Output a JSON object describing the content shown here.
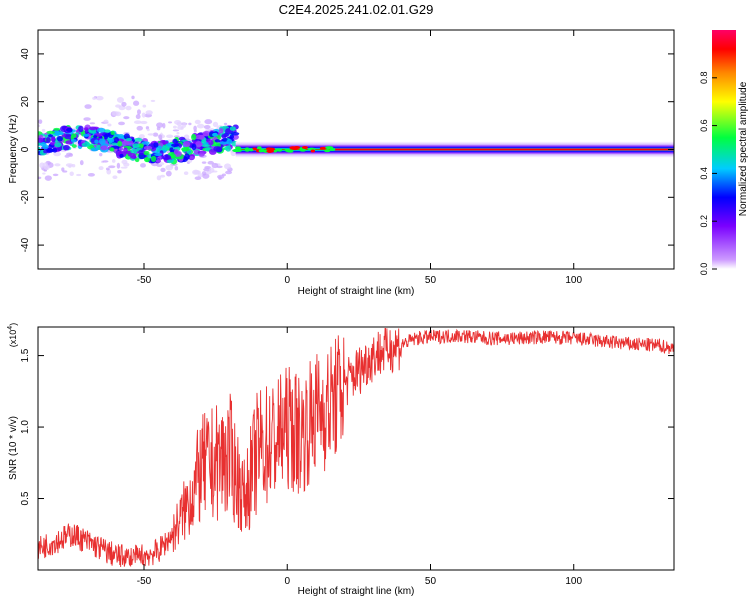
{
  "title": "C2E4.2025.241.02.01.G29",
  "chart_data": [
    {
      "type": "heatmap",
      "xlabel": "Height of straight line (km)",
      "ylabel": "Frequency (Hz)",
      "xlim": [
        -87,
        135
      ],
      "ylim": [
        -50,
        50
      ],
      "xticks": [
        -50,
        0,
        50,
        100
      ],
      "yticks": [
        -40,
        -20,
        0,
        20,
        40
      ],
      "colorbar": {
        "label": "Normalized spectral amplitude",
        "range": [
          0,
          1
        ],
        "ticks": [
          "0.0",
          "0.2",
          "0.4",
          "0.6",
          "0.8"
        ],
        "tick_values": [
          0.0,
          0.2,
          0.4,
          0.6,
          0.8
        ]
      },
      "features": [
        {
          "name": "scattered-band",
          "x_range": [
            -87,
            -18
          ],
          "freq_range": [
            -8,
            12
          ]
        },
        {
          "name": "narrow-band",
          "x_range": [
            -18,
            135
          ],
          "freq": 0
        }
      ]
    },
    {
      "type": "line",
      "xlabel": "Height of straight line (km)",
      "ylabel": "SNR (10 * v/v)",
      "scale_label": "(x10",
      "scale_exp": "4",
      "xlim": [
        -87,
        135
      ],
      "ylim": [
        0,
        1.7
      ],
      "xticks": [
        -50,
        0,
        50,
        100
      ],
      "yticks": [
        "0.5",
        "1.0",
        "1.5"
      ],
      "ytick_values": [
        0.5,
        1.0,
        1.5
      ],
      "series": [
        {
          "name": "SNR",
          "color": "#e83030",
          "x": [
            -87,
            -75,
            -65,
            -60,
            -55,
            -50,
            -45,
            -40,
            -35,
            -30,
            -25,
            -20,
            -15,
            -10,
            -5,
            0,
            5,
            10,
            15,
            20,
            25,
            30,
            35,
            40,
            45,
            50,
            60,
            70,
            80,
            90,
            100,
            110,
            120,
            130,
            135
          ],
          "y": [
            0.15,
            0.25,
            0.15,
            0.1,
            0.08,
            0.1,
            0.13,
            0.25,
            0.45,
            0.7,
            0.75,
            0.8,
            0.5,
            0.85,
            0.9,
            1.0,
            0.95,
            1.1,
            1.15,
            1.3,
            1.4,
            1.5,
            1.55,
            1.58,
            1.62,
            1.63,
            1.64,
            1.62,
            1.62,
            1.63,
            1.62,
            1.6,
            1.58,
            1.57,
            1.55
          ]
        }
      ]
    }
  ]
}
